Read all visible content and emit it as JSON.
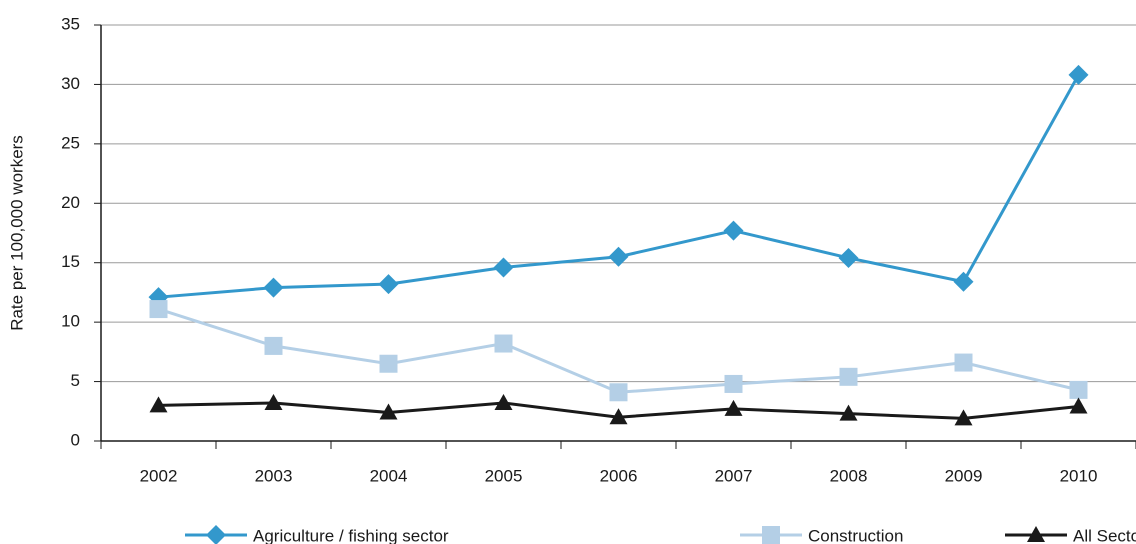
{
  "chart_data": {
    "type": "line",
    "y_label": "Rate per 100,000 workers",
    "categories": [
      "2002",
      "2003",
      "2004",
      "2005",
      "2006",
      "2007",
      "2008",
      "2009",
      "2010"
    ],
    "series": [
      {
        "name": "Agriculture / fishing sector",
        "color": "#3398cc",
        "marker": "diamond",
        "values": [
          12.1,
          12.9,
          13.2,
          14.6,
          15.5,
          17.7,
          15.4,
          13.4,
          30.8
        ]
      },
      {
        "name": "Construction",
        "color": "#b4cfe6",
        "marker": "square",
        "values": [
          11.1,
          8.0,
          6.5,
          8.2,
          4.1,
          4.8,
          5.4,
          6.6,
          4.3
        ]
      },
      {
        "name": "All Sectors",
        "color": "#1a1a1a",
        "marker": "triangle",
        "values": [
          3.0,
          3.2,
          2.4,
          3.2,
          2.0,
          2.7,
          2.3,
          1.9,
          2.9
        ]
      }
    ],
    "ylim": [
      0,
      35
    ],
    "yticks": [
      0,
      5,
      10,
      15,
      20,
      25,
      30,
      35
    ],
    "grid": true
  }
}
